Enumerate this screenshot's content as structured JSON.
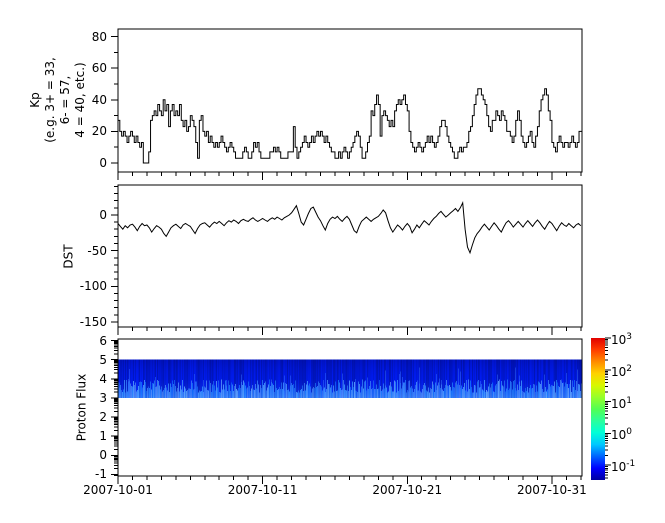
{
  "figure": {
    "background": "#ffffff",
    "frame_color": "#000000",
    "line_color": "#000000"
  },
  "xaxis": {
    "start": "2007-10-01",
    "span_days": 32.08,
    "tick_labels": [
      "2007-10-01",
      "2007-10-11",
      "2007-10-21",
      "2007-10-31"
    ],
    "tick_days": [
      0,
      10,
      20,
      30
    ],
    "minor_tick_step_days": 1
  },
  "chart_data": [
    {
      "type": "line",
      "subtype": "step",
      "panel": "kp",
      "ylabel_lines": [
        "Kp",
        "(e.g. 3+ = 33,",
        "6- = 57,",
        "4 = 40, etc.)"
      ],
      "yticks": [
        0,
        20,
        40,
        60,
        80
      ],
      "minor_ytick_step": 10,
      "ylim": [
        -5.7,
        84.8
      ],
      "cadence_hours": 3,
      "grid": false,
      "values": [
        27,
        20,
        17,
        20,
        17,
        13,
        17,
        20,
        17,
        13,
        17,
        13,
        10,
        13,
        0,
        0,
        0,
        7,
        27,
        30,
        33,
        30,
        37,
        33,
        30,
        40,
        33,
        37,
        23,
        33,
        37,
        30,
        33,
        30,
        37,
        27,
        23,
        27,
        20,
        23,
        30,
        27,
        23,
        13,
        3,
        27,
        30,
        20,
        17,
        20,
        13,
        17,
        13,
        10,
        13,
        10,
        13,
        17,
        13,
        10,
        7,
        10,
        13,
        10,
        7,
        3,
        3,
        3,
        3,
        7,
        10,
        7,
        3,
        3,
        7,
        13,
        10,
        13,
        7,
        3,
        3,
        3,
        3,
        3,
        7,
        7,
        10,
        7,
        10,
        7,
        3,
        3,
        3,
        3,
        7,
        7,
        7,
        23,
        10,
        3,
        7,
        10,
        13,
        17,
        13,
        10,
        13,
        17,
        13,
        17,
        20,
        17,
        20,
        17,
        13,
        17,
        13,
        10,
        7,
        7,
        3,
        3,
        7,
        3,
        7,
        10,
        7,
        3,
        7,
        10,
        13,
        17,
        20,
        17,
        10,
        3,
        3,
        7,
        13,
        17,
        33,
        30,
        37,
        43,
        37,
        17,
        30,
        33,
        30,
        27,
        23,
        27,
        23,
        33,
        37,
        40,
        37,
        40,
        43,
        37,
        33,
        20,
        13,
        10,
        7,
        10,
        13,
        10,
        7,
        10,
        13,
        17,
        13,
        17,
        13,
        10,
        13,
        17,
        23,
        27,
        27,
        23,
        17,
        13,
        10,
        7,
        3,
        3,
        7,
        10,
        7,
        10,
        10,
        13,
        20,
        23,
        30,
        37,
        43,
        47,
        47,
        43,
        40,
        37,
        30,
        23,
        20,
        27,
        27,
        33,
        30,
        27,
        33,
        30,
        27,
        20,
        20,
        17,
        13,
        17,
        27,
        33,
        27,
        17,
        13,
        10,
        13,
        17,
        20,
        13,
        10,
        17,
        23,
        33,
        40,
        43,
        47,
        43,
        33,
        27,
        13,
        10,
        7,
        13,
        17,
        13,
        10,
        13,
        13,
        10,
        13,
        17,
        13,
        10,
        13,
        20,
        20
      ]
    },
    {
      "type": "line",
      "panel": "dst",
      "ylabel": "DST",
      "yticks": [
        0,
        -50,
        -100,
        -150
      ],
      "minor_ytick_step": 10,
      "ylim": [
        -157,
        42
      ],
      "cadence_hours": 4,
      "grid": false,
      "values": [
        -12,
        -16,
        -20,
        -15,
        -18,
        -14,
        -13,
        -17,
        -22,
        -16,
        -12,
        -15,
        -14,
        -18,
        -24,
        -19,
        -15,
        -17,
        -20,
        -26,
        -30,
        -24,
        -18,
        -15,
        -13,
        -16,
        -19,
        -14,
        -12,
        -14,
        -16,
        -21,
        -26,
        -19,
        -14,
        -12,
        -11,
        -14,
        -17,
        -13,
        -10,
        -12,
        -9,
        -12,
        -15,
        -11,
        -8,
        -10,
        -7,
        -9,
        -12,
        -8,
        -6,
        -8,
        -9,
        -6,
        -4,
        -7,
        -9,
        -7,
        -5,
        -7,
        -9,
        -6,
        -4,
        -6,
        -3,
        -5,
        -7,
        -4,
        -2,
        0,
        3,
        8,
        13,
        2,
        -10,
        -14,
        -6,
        2,
        9,
        11,
        4,
        -3,
        -8,
        -15,
        -21,
        -12,
        -6,
        -3,
        -5,
        -2,
        -6,
        -9,
        -5,
        -2,
        -6,
        -14,
        -22,
        -25,
        -16,
        -9,
        -6,
        -3,
        -6,
        -9,
        -6,
        -4,
        -2,
        2,
        7,
        3,
        -8,
        -18,
        -24,
        -19,
        -14,
        -17,
        -21,
        -16,
        -12,
        -16,
        -25,
        -20,
        -14,
        -18,
        -13,
        -8,
        -11,
        -14,
        -9,
        -5,
        -2,
        2,
        5,
        1,
        -3,
        0,
        3,
        6,
        9,
        5,
        10,
        17,
        -20,
        -45,
        -53,
        -42,
        -32,
        -26,
        -22,
        -17,
        -13,
        -17,
        -21,
        -16,
        -11,
        -15,
        -20,
        -24,
        -17,
        -11,
        -8,
        -12,
        -17,
        -13,
        -9,
        -13,
        -17,
        -12,
        -8,
        -12,
        -16,
        -11,
        -7,
        -11,
        -16,
        -20,
        -14,
        -9,
        -12,
        -17,
        -22,
        -16,
        -11,
        -14,
        -16,
        -12,
        -15,
        -18,
        -14,
        -12,
        -15
      ]
    },
    {
      "type": "heatmap",
      "panel": "flux",
      "ylabel": "Proton Flux",
      "yticks": [
        -1,
        0,
        1,
        2,
        3,
        4,
        5,
        6
      ],
      "minor_ytick_style": "log-decade",
      "ylim": [
        -1.08,
        6.08
      ],
      "grid": false,
      "band": {
        "y_from": 3,
        "y_to": 5,
        "note": "continuous blue band spanning full time range; flux approx 0.03-0.1 (dark blue) for y 3.6-5, brighter 0.1-0.5 blue streaks near y 3-3.6"
      },
      "colorbar": {
        "scale": "log",
        "tick_base": "10",
        "tick_exponents": [
          3,
          2,
          1,
          0,
          -1
        ],
        "range": [
          0.03,
          1000
        ],
        "colormap": "jet",
        "colormap_stops_bottom_to_top": [
          "#0000a0",
          "#0000ff",
          "#0064ff",
          "#00c8ff",
          "#00ffd8",
          "#2aff9c",
          "#52ff52",
          "#96ff2a",
          "#d8f800",
          "#ffd200",
          "#ff8c00",
          "#ff3c00",
          "#e10000"
        ]
      }
    }
  ]
}
